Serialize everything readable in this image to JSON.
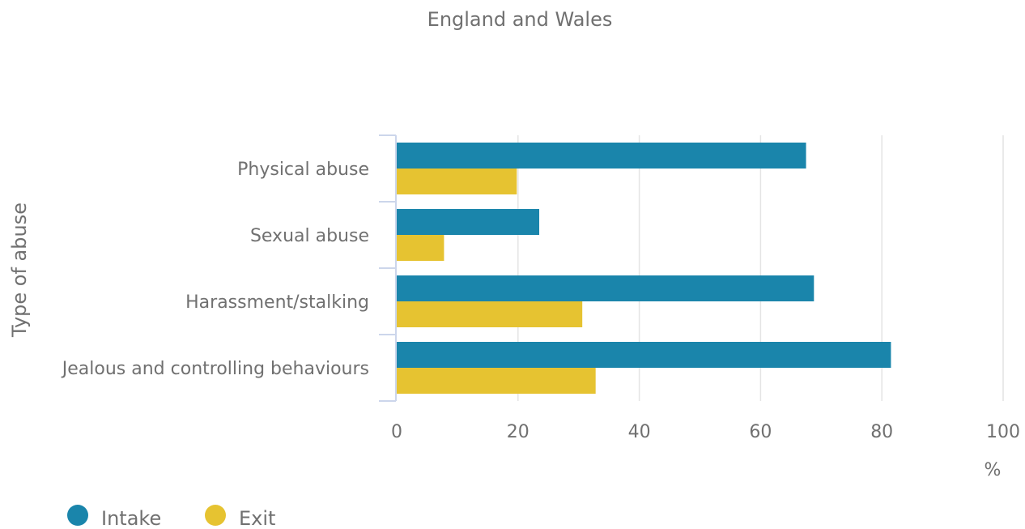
{
  "chart_data": {
    "type": "bar",
    "orientation": "horizontal",
    "title": "England and Wales",
    "xlabel": "%",
    "ylabel": "Type of abuse",
    "categories": [
      "Physical abuse",
      "Sexual abuse",
      "Harassment/stalking",
      "Jealous and controlling behaviours"
    ],
    "series": [
      {
        "name": "Intake",
        "color": "#1a85ab",
        "values": [
          67.5,
          23.5,
          68.8,
          81.5
        ]
      },
      {
        "name": "Exit",
        "color": "#e6c331",
        "values": [
          19.8,
          7.8,
          30.6,
          32.8
        ]
      }
    ],
    "xlim": [
      0,
      100
    ],
    "xticks": [
      "0",
      "20",
      "40",
      "60",
      "80",
      "100"
    ],
    "grid": true,
    "legend_position": "bottom-left"
  }
}
